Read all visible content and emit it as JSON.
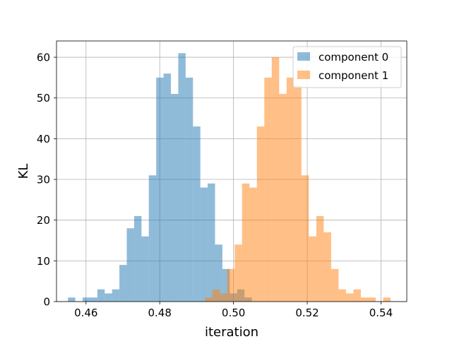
{
  "chart_data": {
    "type": "bar",
    "subtype": "overlapping-histogram",
    "xlabel": "iteration",
    "ylabel": "KL",
    "xlim": [
      0.452,
      0.547
    ],
    "ylim": [
      0,
      64
    ],
    "xticks": [
      0.46,
      0.48,
      0.5,
      0.52,
      0.54
    ],
    "xtick_labels": [
      "0.46",
      "0.48",
      "0.50",
      "0.52",
      "0.54"
    ],
    "yticks": [
      0,
      10,
      20,
      30,
      40,
      50,
      60
    ],
    "ytick_labels": [
      "0",
      "10",
      "20",
      "30",
      "40",
      "50",
      "60"
    ],
    "grid": true,
    "legend_position": "top-right",
    "series": [
      {
        "name": "component 0",
        "color": "#1f77b4",
        "opacity": 0.5,
        "bin_start": 0.4551,
        "bin_width": 0.0019947,
        "values": [
          1,
          0,
          1,
          1,
          3,
          2,
          3,
          9,
          18,
          21,
          16,
          31,
          55,
          56,
          51,
          61,
          55,
          43,
          28,
          29,
          14,
          8,
          2,
          3,
          1
        ]
      },
      {
        "name": "component 1",
        "color": "#ff7f0e",
        "opacity": 0.5,
        "bin_start": 0.49225,
        "bin_width": 0.0020136,
        "values": [
          1,
          3,
          2,
          8,
          14,
          29,
          28,
          43,
          55,
          60,
          51,
          55,
          53,
          31,
          16,
          21,
          17,
          8,
          3,
          2,
          3,
          1,
          1,
          0,
          1
        ]
      }
    ]
  }
}
